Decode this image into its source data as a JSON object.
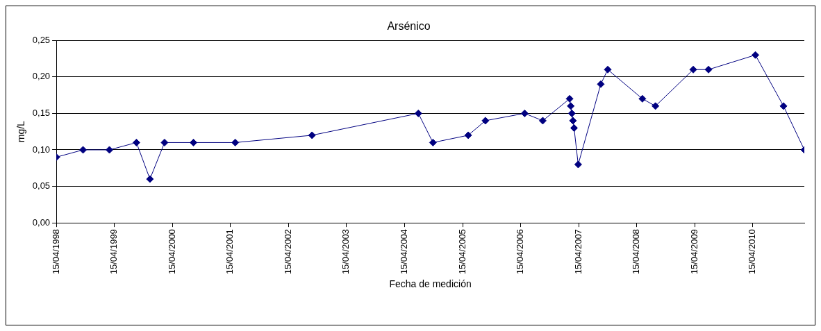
{
  "chart_data": {
    "type": "line",
    "title": "Arsénico",
    "xlabel": "Fecha de medición",
    "ylabel": "mg/L",
    "x": [
      "1998-04-15",
      "1998-09-30",
      "1999-03-15",
      "1999-09-01",
      "1999-11-25",
      "2000-02-25",
      "2000-08-25",
      "2001-05-15",
      "2002-09-10",
      "2004-07-10",
      "2004-10-10",
      "2005-05-20",
      "2005-09-05",
      "2006-05-10",
      "2006-09-01",
      "2007-02-17",
      "2007-02-24",
      "2007-03-03",
      "2007-03-10",
      "2007-03-17",
      "2007-04-12",
      "2007-09-01",
      "2007-10-15",
      "2008-05-20",
      "2008-08-10",
      "2009-04-05",
      "2009-07-10",
      "2010-05-01",
      "2010-10-25",
      "2011-03-05"
    ],
    "series": [
      {
        "color": "#000080",
        "values": [
          0.09,
          0.1,
          0.1,
          0.11,
          0.06,
          0.11,
          0.11,
          0.11,
          0.12,
          0.15,
          0.11,
          0.12,
          0.14,
          0.15,
          0.14,
          0.17,
          0.16,
          0.15,
          0.14,
          0.13,
          0.08,
          0.19,
          0.21,
          0.17,
          0.16,
          0.21,
          0.21,
          0.23,
          0.16,
          0.1
        ]
      }
    ],
    "xlim": [
      "1998-04-15",
      "2011-03-05"
    ],
    "xticks": [
      {
        "value": "1998-04-15",
        "label": "15/04/1998"
      },
      {
        "value": "1999-04-15",
        "label": "15/04/1999"
      },
      {
        "value": "2000-04-15",
        "label": "15/04/2000"
      },
      {
        "value": "2001-04-15",
        "label": "15/04/2001"
      },
      {
        "value": "2002-04-15",
        "label": "15/04/2002"
      },
      {
        "value": "2003-04-15",
        "label": "15/04/2003"
      },
      {
        "value": "2004-04-15",
        "label": "15/04/2004"
      },
      {
        "value": "2005-04-15",
        "label": "15/04/2005"
      },
      {
        "value": "2006-04-15",
        "label": "15/04/2006"
      },
      {
        "value": "2007-04-15",
        "label": "15/04/2007"
      },
      {
        "value": "2008-04-15",
        "label": "15/04/2008"
      },
      {
        "value": "2009-04-15",
        "label": "15/04/2009"
      },
      {
        "value": "2010-04-15",
        "label": "15/04/2010"
      }
    ],
    "ylim": [
      0,
      0.25
    ],
    "yticks": [
      {
        "value": 0,
        "label": "0,00"
      },
      {
        "value": 0.05,
        "label": "0,05"
      },
      {
        "value": 0.1,
        "label": "0,10"
      },
      {
        "value": 0.15,
        "label": "0,15"
      },
      {
        "value": 0.2,
        "label": "0,20"
      },
      {
        "value": 0.25,
        "label": "0,25"
      }
    ],
    "grid": "y",
    "legend": false,
    "marker": "diamond",
    "line_style": "solid"
  }
}
